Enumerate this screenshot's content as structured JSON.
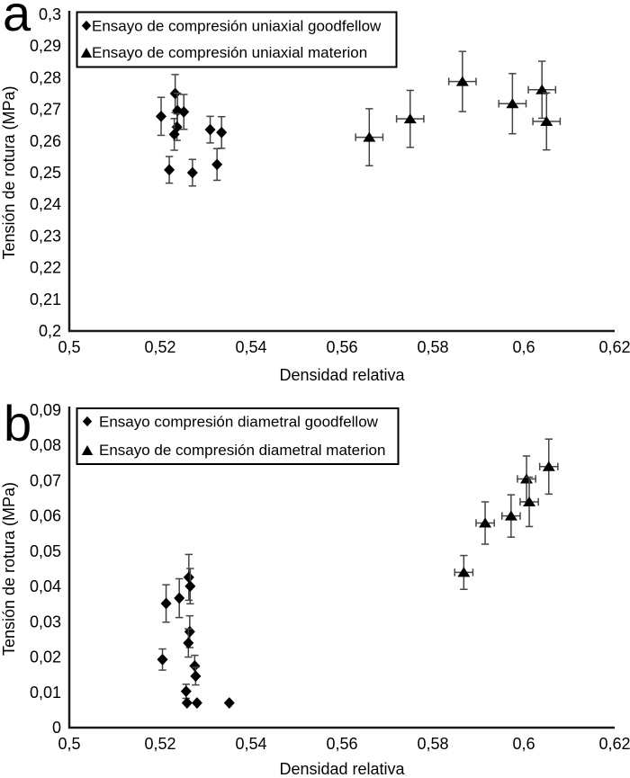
{
  "page": {
    "background": "#ffffff",
    "text_color": "#000000",
    "marker_color": "#000000",
    "error_bar_color": "#454545"
  },
  "chart_data": [
    {
      "panel_label": "a",
      "type": "scatter",
      "title": "",
      "xlabel": "Densidad relativa",
      "ylabel": "Tensión de rotura (MPa)",
      "xlim": [
        0.5,
        0.62
      ],
      "ylim": [
        0.2,
        0.3
      ],
      "grid": false,
      "legend_position": "top-left",
      "x_ticks": [
        {
          "value": 0.5,
          "label": "0,5"
        },
        {
          "value": 0.52,
          "label": "0,52"
        },
        {
          "value": 0.54,
          "label": "0,54"
        },
        {
          "value": 0.56,
          "label": "0,56"
        },
        {
          "value": 0.58,
          "label": "0,58"
        },
        {
          "value": 0.6,
          "label": "0,6"
        },
        {
          "value": 0.62,
          "label": "0,62"
        }
      ],
      "y_ticks": [
        {
          "value": 0.2,
          "label": "0,2"
        },
        {
          "value": 0.21,
          "label": "0,21"
        },
        {
          "value": 0.22,
          "label": "0,22"
        },
        {
          "value": 0.23,
          "label": "0,23"
        },
        {
          "value": 0.24,
          "label": "0,24"
        },
        {
          "value": 0.25,
          "label": "0,25"
        },
        {
          "value": 0.26,
          "label": "0,26"
        },
        {
          "value": 0.27,
          "label": "0,27"
        },
        {
          "value": 0.28,
          "label": "0,28"
        },
        {
          "value": 0.29,
          "label": "0,29"
        },
        {
          "value": 0.3,
          "label": "0,3"
        }
      ],
      "series": [
        {
          "name": "Ensayo de compresión uniaxial goodfellow",
          "marker": "diamond",
          "color": "#000000",
          "points": [
            {
              "x": 0.5233,
              "y": 0.275,
              "yerr": 0.006
            },
            {
              "x": 0.5238,
              "y": 0.2696,
              "yerr": 0.0055
            },
            {
              "x": 0.5252,
              "y": 0.2692,
              "yerr": 0.0055
            },
            {
              "x": 0.5202,
              "y": 0.2678,
              "yerr": 0.006
            },
            {
              "x": 0.5237,
              "y": 0.2644,
              "yerr": 0.0042
            },
            {
              "x": 0.5231,
              "y": 0.2621,
              "yerr": 0.005
            },
            {
              "x": 0.531,
              "y": 0.2636,
              "yerr": 0.0042
            },
            {
              "x": 0.5335,
              "y": 0.2627,
              "yerr": 0.005
            },
            {
              "x": 0.522,
              "y": 0.2509,
              "yerr": 0.0042
            },
            {
              "x": 0.5271,
              "y": 0.25,
              "yerr": 0.0042
            },
            {
              "x": 0.5325,
              "y": 0.2526,
              "yerr": 0.005
            }
          ]
        },
        {
          "name": "Ensayo de compresión uniaxial materion",
          "marker": "triangle",
          "color": "#000000",
          "points": [
            {
              "x": 0.566,
              "y": 0.2612,
              "yerr": 0.009,
              "xerr": 0.003
            },
            {
              "x": 0.575,
              "y": 0.267,
              "yerr": 0.009,
              "xerr": 0.003
            },
            {
              "x": 0.5865,
              "y": 0.2788,
              "yerr": 0.0095,
              "xerr": 0.003
            },
            {
              "x": 0.5975,
              "y": 0.2718,
              "yerr": 0.0095,
              "xerr": 0.003
            },
            {
              "x": 0.604,
              "y": 0.2762,
              "yerr": 0.009,
              "xerr": 0.003
            },
            {
              "x": 0.605,
              "y": 0.2662,
              "yerr": 0.009,
              "xerr": 0.003
            }
          ]
        }
      ]
    },
    {
      "panel_label": "b",
      "type": "scatter",
      "title": "",
      "xlabel": "Densidad relativa",
      "ylabel": "Tensión de rotura (MPa)",
      "xlim": [
        0.5,
        0.62
      ],
      "ylim": [
        0,
        0.09
      ],
      "grid": false,
      "legend_position": "top-left",
      "x_ticks": [
        {
          "value": 0.5,
          "label": "0,5"
        },
        {
          "value": 0.52,
          "label": "0,52"
        },
        {
          "value": 0.54,
          "label": "0,54"
        },
        {
          "value": 0.56,
          "label": "0,56"
        },
        {
          "value": 0.58,
          "label": "0,58"
        },
        {
          "value": 0.6,
          "label": "0,6"
        },
        {
          "value": 0.62,
          "label": "0,62"
        }
      ],
      "y_ticks": [
        {
          "value": 0,
          "label": "0"
        },
        {
          "value": 0.01,
          "label": "0,01"
        },
        {
          "value": 0.02,
          "label": "0,02"
        },
        {
          "value": 0.03,
          "label": "0,03"
        },
        {
          "value": 0.04,
          "label": "0,04"
        },
        {
          "value": 0.05,
          "label": "0,05"
        },
        {
          "value": 0.06,
          "label": "0,06"
        },
        {
          "value": 0.07,
          "label": "0,07"
        },
        {
          "value": 0.08,
          "label": "0,08"
        },
        {
          "value": 0.09,
          "label": "0,09"
        }
      ],
      "series": [
        {
          "name": "Ensayo compresión diametral goodfellow",
          "marker": "diamond",
          "color": "#000000",
          "points": [
            {
              "x": 0.5263,
              "y": 0.0426,
              "yerr": 0.0065
            },
            {
              "x": 0.5266,
              "y": 0.0401,
              "yerr": 0.005
            },
            {
              "x": 0.5242,
              "y": 0.0367,
              "yerr": 0.0055
            },
            {
              "x": 0.5213,
              "y": 0.0352,
              "yerr": 0.0053
            },
            {
              "x": 0.5265,
              "y": 0.0272,
              "yerr": 0.0045
            },
            {
              "x": 0.5262,
              "y": 0.024,
              "yerr": 0.004
            },
            {
              "x": 0.5205,
              "y": 0.0193,
              "yerr": 0.003
            },
            {
              "x": 0.5276,
              "y": 0.0175,
              "yerr": 0.003
            },
            {
              "x": 0.5278,
              "y": 0.0146,
              "yerr": 0.0025
            },
            {
              "x": 0.5257,
              "y": 0.0103,
              "yerr": 0.002
            },
            {
              "x": 0.5259,
              "y": 0.007,
              "yerr": 0
            },
            {
              "x": 0.5281,
              "y": 0.007,
              "yerr": 0
            },
            {
              "x": 0.5352,
              "y": 0.007,
              "yerr": 0
            }
          ]
        },
        {
          "name": "Ensayo de compresión diametral materion",
          "marker": "triangle",
          "color": "#000000",
          "points": [
            {
              "x": 0.5868,
              "y": 0.044,
              "yerr": 0.0048,
              "xerr": 0.002
            },
            {
              "x": 0.5915,
              "y": 0.058,
              "yerr": 0.006,
              "xerr": 0.002
            },
            {
              "x": 0.5972,
              "y": 0.06,
              "yerr": 0.006,
              "xerr": 0.002
            },
            {
              "x": 0.6006,
              "y": 0.0705,
              "yerr": 0.0065,
              "xerr": 0.002
            },
            {
              "x": 0.6012,
              "y": 0.064,
              "yerr": 0.007,
              "xerr": 0.002
            },
            {
              "x": 0.6055,
              "y": 0.074,
              "yerr": 0.0078,
              "xerr": 0.002
            }
          ]
        }
      ]
    }
  ]
}
